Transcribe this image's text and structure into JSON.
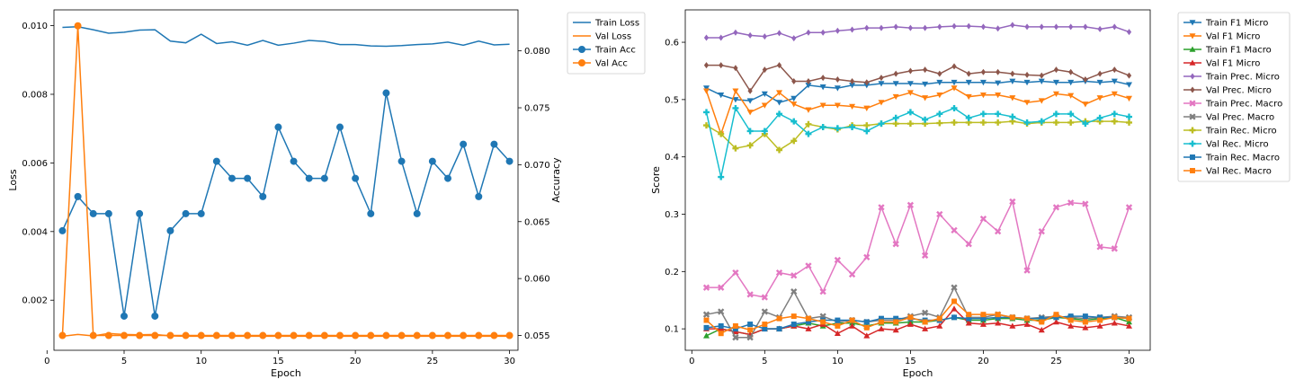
{
  "chart_data": [
    {
      "type": "line",
      "xlabel": "Epoch",
      "ylabel": "Loss",
      "y2label": "Accuracy",
      "x": [
        1,
        2,
        3,
        4,
        5,
        6,
        7,
        8,
        9,
        10,
        11,
        12,
        13,
        14,
        15,
        16,
        17,
        18,
        19,
        20,
        21,
        22,
        23,
        24,
        25,
        26,
        27,
        28,
        29,
        30
      ],
      "xlim": [
        0.45,
        30.55
      ],
      "xticks": [
        0,
        5,
        10,
        15,
        20,
        25,
        30
      ],
      "ylim": [
        0.00054,
        0.01046
      ],
      "yticks": [
        "0.002",
        "0.004",
        "0.006",
        "0.008",
        "0.010"
      ],
      "y2lim": [
        0.0537,
        0.0836
      ],
      "y2ticks": [
        "0.055",
        "0.060",
        "0.065",
        "0.070",
        "0.075",
        "0.080"
      ],
      "legend_position": "upper-right-outside",
      "series": [
        {
          "name": "Train Loss",
          "axis": "left",
          "color": "#1f77b4",
          "marker": "none",
          "values": [
            0.00995,
            0.00997,
            0.00988,
            0.00978,
            0.00981,
            0.00987,
            0.00988,
            0.00955,
            0.0095,
            0.00975,
            0.00948,
            0.00953,
            0.00943,
            0.00957,
            0.00943,
            0.00949,
            0.00957,
            0.00954,
            0.00945,
            0.00945,
            0.00941,
            0.0094,
            0.00942,
            0.00945,
            0.00947,
            0.00952,
            0.00943,
            0.00955,
            0.00944,
            0.00946
          ]
        },
        {
          "name": "Val Loss",
          "axis": "left",
          "color": "#ff7f0e",
          "marker": "none",
          "values": [
            0.00095,
            0.001,
            0.00096,
            0.00103,
            0.001,
            0.00099,
            0.001,
            0.00096,
            0.00095,
            0.00095,
            0.00095,
            0.00095,
            0.00095,
            0.00095,
            0.00095,
            0.00095,
            0.00095,
            0.00095,
            0.00095,
            0.00095,
            0.00095,
            0.00095,
            0.00095,
            0.00095,
            0.00095,
            0.00095,
            0.00095,
            0.00095,
            0.00095,
            0.00095
          ]
        },
        {
          "name": "Train Acc",
          "axis": "right",
          "color": "#1f77b4",
          "marker": "circle",
          "values": [
            0.0642,
            0.0672,
            0.0657,
            0.0657,
            0.0567,
            0.0657,
            0.0567,
            0.0642,
            0.0657,
            0.0657,
            0.0703,
            0.0688,
            0.0688,
            0.0672,
            0.0733,
            0.0703,
            0.0688,
            0.0688,
            0.0733,
            0.0688,
            0.0657,
            0.0763,
            0.0703,
            0.0657,
            0.0703,
            0.0688,
            0.0718,
            0.0672,
            0.0718,
            0.0703
          ]
        },
        {
          "name": "Val Acc",
          "axis": "right",
          "color": "#ff7f0e",
          "marker": "circle",
          "values": [
            0.055,
            0.0822,
            0.055,
            0.055,
            0.055,
            0.055,
            0.055,
            0.055,
            0.055,
            0.055,
            0.055,
            0.055,
            0.055,
            0.055,
            0.055,
            0.055,
            0.055,
            0.055,
            0.055,
            0.055,
            0.055,
            0.055,
            0.055,
            0.055,
            0.055,
            0.055,
            0.055,
            0.055,
            0.055,
            0.055
          ]
        }
      ]
    },
    {
      "type": "line",
      "xlabel": "Epoch",
      "ylabel": "Score",
      "x": [
        1,
        2,
        3,
        4,
        5,
        6,
        7,
        8,
        9,
        10,
        11,
        12,
        13,
        14,
        15,
        16,
        17,
        18,
        19,
        20,
        21,
        22,
        23,
        24,
        25,
        26,
        27,
        28,
        29,
        30
      ],
      "xlim": [
        -0.45,
        31.45
      ],
      "xticks": [
        0,
        5,
        10,
        15,
        20,
        25,
        30
      ],
      "ylim": [
        0.0626,
        0.6565
      ],
      "yticks": [
        "0.1",
        "0.2",
        "0.3",
        "0.4",
        "0.5",
        "0.6"
      ],
      "legend_position": "upper-right-outside",
      "series": [
        {
          "name": "Train F1 Micro",
          "color": "#1f77b4",
          "marker": "tri-down",
          "values": [
            0.52,
            0.508,
            0.5,
            0.498,
            0.51,
            0.495,
            0.502,
            0.525,
            0.522,
            0.52,
            0.525,
            0.525,
            0.528,
            0.528,
            0.528,
            0.527,
            0.53,
            0.53,
            0.53,
            0.53,
            0.529,
            0.532,
            0.53,
            0.532,
            0.53,
            0.53,
            0.532,
            0.53,
            0.532,
            0.526
          ]
        },
        {
          "name": "Val F1 Micro",
          "color": "#ff7f0e",
          "marker": "tri-down",
          "values": [
            0.515,
            0.44,
            0.515,
            0.478,
            0.49,
            0.512,
            0.492,
            0.482,
            0.49,
            0.49,
            0.488,
            0.485,
            0.495,
            0.505,
            0.512,
            0.503,
            0.508,
            0.52,
            0.505,
            0.508,
            0.508,
            0.503,
            0.495,
            0.498,
            0.51,
            0.507,
            0.492,
            0.503,
            0.51,
            0.502
          ]
        },
        {
          "name": "Train F1 Macro",
          "color": "#2ca02c",
          "marker": "tri-up",
          "values": [
            0.088,
            0.1,
            0.095,
            0.09,
            0.1,
            0.1,
            0.105,
            0.11,
            0.105,
            0.11,
            0.11,
            0.105,
            0.11,
            0.11,
            0.112,
            0.112,
            0.115,
            0.12,
            0.115,
            0.115,
            0.118,
            0.118,
            0.115,
            0.115,
            0.12,
            0.118,
            0.115,
            0.118,
            0.12,
            0.112
          ]
        },
        {
          "name": "Val F1 Micro",
          "color": "#d62728",
          "marker": "tri-up",
          "values": [
            0.1,
            0.1,
            0.095,
            0.09,
            0.1,
            0.1,
            0.105,
            0.1,
            0.108,
            0.092,
            0.105,
            0.088,
            0.1,
            0.098,
            0.108,
            0.1,
            0.105,
            0.135,
            0.11,
            0.108,
            0.11,
            0.105,
            0.108,
            0.098,
            0.112,
            0.105,
            0.102,
            0.105,
            0.11,
            0.105
          ]
        },
        {
          "name": "Train Prec. Micro",
          "color": "#9467bd",
          "marker": "diamond",
          "values": [
            0.608,
            0.608,
            0.617,
            0.612,
            0.61,
            0.616,
            0.607,
            0.617,
            0.617,
            0.62,
            0.622,
            0.625,
            0.625,
            0.627,
            0.625,
            0.625,
            0.627,
            0.628,
            0.628,
            0.627,
            0.624,
            0.63,
            0.627,
            0.627,
            0.627,
            0.627,
            0.627,
            0.623,
            0.627,
            0.618
          ]
        },
        {
          "name": "Val Prec. Micro",
          "color": "#8c564b",
          "marker": "diamond",
          "values": [
            0.56,
            0.56,
            0.555,
            0.515,
            0.552,
            0.56,
            0.532,
            0.532,
            0.538,
            0.535,
            0.532,
            0.53,
            0.538,
            0.545,
            0.55,
            0.552,
            0.545,
            0.558,
            0.545,
            0.548,
            0.548,
            0.545,
            0.543,
            0.542,
            0.552,
            0.548,
            0.535,
            0.545,
            0.552,
            0.542
          ]
        },
        {
          "name": "Train Prec. Macro",
          "color": "#e377c2",
          "marker": "x",
          "values": [
            0.172,
            0.172,
            0.198,
            0.16,
            0.155,
            0.198,
            0.193,
            0.21,
            0.165,
            0.22,
            0.195,
            0.225,
            0.312,
            0.248,
            0.316,
            0.228,
            0.3,
            0.272,
            0.248,
            0.292,
            0.27,
            0.322,
            0.202,
            0.27,
            0.312,
            0.32,
            0.318,
            0.243,
            0.24,
            0.312
          ]
        },
        {
          "name": "Val Prec. Macro",
          "color": "#7f7f7f",
          "marker": "x",
          "values": [
            0.125,
            0.13,
            0.085,
            0.085,
            0.13,
            0.12,
            0.165,
            0.118,
            0.122,
            0.112,
            0.115,
            0.112,
            0.115,
            0.115,
            0.122,
            0.128,
            0.12,
            0.172,
            0.12,
            0.12,
            0.125,
            0.12,
            0.118,
            0.12,
            0.122,
            0.12,
            0.118,
            0.12,
            0.122,
            0.12
          ]
        },
        {
          "name": "Train Rec. Micro",
          "color": "#bcbd22",
          "marker": "plus",
          "values": [
            0.455,
            0.44,
            0.415,
            0.42,
            0.44,
            0.412,
            0.428,
            0.457,
            0.452,
            0.448,
            0.455,
            0.455,
            0.458,
            0.458,
            0.458,
            0.458,
            0.459,
            0.46,
            0.46,
            0.46,
            0.46,
            0.462,
            0.458,
            0.46,
            0.46,
            0.46,
            0.462,
            0.462,
            0.462,
            0.46
          ]
        },
        {
          "name": "Val Rec. Micro",
          "color": "#17becf",
          "marker": "plus",
          "values": [
            0.478,
            0.365,
            0.485,
            0.445,
            0.445,
            0.475,
            0.462,
            0.44,
            0.452,
            0.45,
            0.452,
            0.445,
            0.458,
            0.468,
            0.478,
            0.465,
            0.475,
            0.485,
            0.468,
            0.475,
            0.475,
            0.47,
            0.46,
            0.462,
            0.475,
            0.475,
            0.458,
            0.468,
            0.475,
            0.47
          ]
        },
        {
          "name": "Train Rec. Macro",
          "color": "#1f77b4",
          "marker": "square",
          "values": [
            0.102,
            0.105,
            0.1,
            0.108,
            0.1,
            0.1,
            0.108,
            0.112,
            0.115,
            0.115,
            0.115,
            0.112,
            0.118,
            0.118,
            0.118,
            0.115,
            0.115,
            0.12,
            0.118,
            0.118,
            0.12,
            0.12,
            0.118,
            0.118,
            0.12,
            0.122,
            0.122,
            0.12,
            0.12,
            0.118
          ]
        },
        {
          "name": "Val Rec. Macro",
          "color": "#ff7f0e",
          "marker": "square",
          "values": [
            0.115,
            0.092,
            0.105,
            0.098,
            0.108,
            0.118,
            0.122,
            0.118,
            0.112,
            0.105,
            0.115,
            0.102,
            0.112,
            0.112,
            0.12,
            0.112,
            0.118,
            0.148,
            0.125,
            0.125,
            0.125,
            0.12,
            0.118,
            0.112,
            0.125,
            0.115,
            0.112,
            0.115,
            0.12,
            0.118
          ]
        }
      ]
    }
  ]
}
